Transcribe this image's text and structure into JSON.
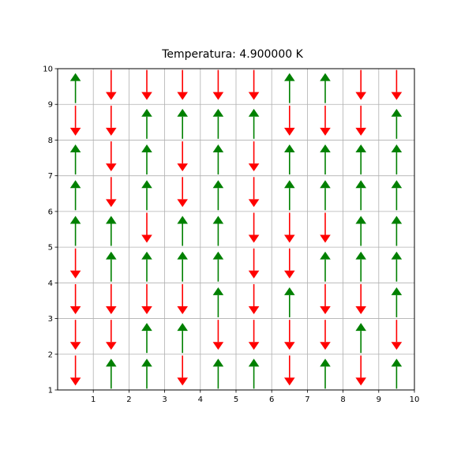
{
  "chart_data": {
    "type": "quiver",
    "title": "Temperatura: 4.900000 K",
    "xlabel": "",
    "ylabel": "",
    "xlim": [
      0,
      10
    ],
    "ylim": [
      1,
      10
    ],
    "xticks": [
      "1",
      "2",
      "3",
      "4",
      "5",
      "6",
      "7",
      "8",
      "9",
      "10"
    ],
    "yticks": [
      "1",
      "2",
      "3",
      "4",
      "5",
      "6",
      "7",
      "8",
      "9",
      "10"
    ],
    "grid": true,
    "colors": {
      "up": "#008000",
      "down": "#ff0000"
    },
    "rows_top_to_bottom": [
      [
        1,
        -1,
        -1,
        -1,
        -1,
        -1,
        1,
        1,
        -1,
        -1
      ],
      [
        -1,
        -1,
        1,
        1,
        1,
        1,
        -1,
        -1,
        -1,
        1
      ],
      [
        1,
        -1,
        1,
        -1,
        1,
        -1,
        1,
        1,
        1,
        1
      ],
      [
        1,
        -1,
        1,
        -1,
        1,
        -1,
        1,
        1,
        1,
        1
      ],
      [
        1,
        1,
        -1,
        1,
        1,
        -1,
        -1,
        -1,
        1,
        1
      ],
      [
        -1,
        1,
        1,
        1,
        1,
        -1,
        -1,
        1,
        1,
        1
      ],
      [
        -1,
        -1,
        -1,
        -1,
        1,
        -1,
        1,
        -1,
        -1,
        1
      ],
      [
        -1,
        -1,
        1,
        1,
        -1,
        -1,
        -1,
        -1,
        1,
        -1
      ],
      [
        -1,
        1,
        1,
        -1,
        1,
        1,
        -1,
        1,
        -1,
        1
      ]
    ]
  }
}
